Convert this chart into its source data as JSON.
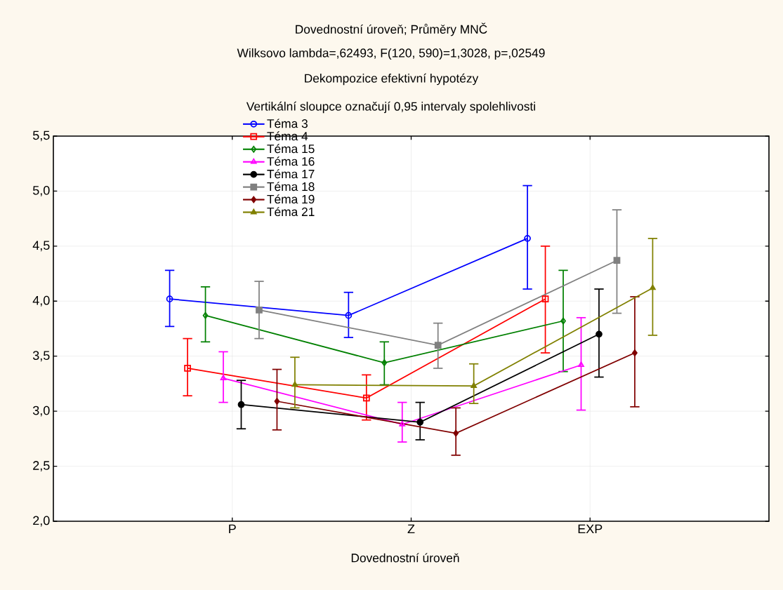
{
  "chart_data": {
    "type": "line",
    "title": "Dovednostní úroveň; Průměry MNČ",
    "subtitle": "Wilksovo lambda=,62493, F(120, 590)=1,3028, p=,02549",
    "annotations": [
      "Dekompozice efektivní hypotézy",
      "Vertikální sloupce označují 0,95 intervaly spolehlivosti"
    ],
    "xlabel": "Dovednostní úroveň",
    "categories": [
      "P",
      "Z",
      "EXP"
    ],
    "series": [
      {
        "name": "Téma 3",
        "color": "#0000ff",
        "marker": "circle",
        "values": [
          4.02,
          3.87,
          4.57
        ],
        "errors": [
          [
            3.77,
            4.28
          ],
          [
            3.67,
            4.08
          ],
          [
            4.11,
            5.05
          ]
        ]
      },
      {
        "name": "Téma 4",
        "color": "#ff0000",
        "marker": "square",
        "values": [
          3.39,
          3.12,
          4.02
        ],
        "errors": [
          [
            3.14,
            3.66
          ],
          [
            2.92,
            3.33
          ],
          [
            3.53,
            4.5
          ]
        ]
      },
      {
        "name": "Téma 15",
        "color": "#008000",
        "marker": "diamond",
        "values": [
          3.87,
          3.44,
          3.82
        ],
        "errors": [
          [
            3.63,
            4.13
          ],
          [
            3.24,
            3.63
          ],
          [
            3.36,
            4.28
          ]
        ]
      },
      {
        "name": "Téma 16",
        "color": "#ff00ff",
        "marker": "triangle",
        "values": [
          3.3,
          2.88,
          3.42
        ],
        "errors": [
          [
            3.08,
            3.54
          ],
          [
            2.72,
            3.08
          ],
          [
            3.01,
            3.85
          ]
        ]
      },
      {
        "name": "Téma 17",
        "color": "#000000",
        "marker": "circle",
        "values": [
          3.06,
          2.9,
          3.7
        ],
        "errors": [
          [
            2.84,
            3.28
          ],
          [
            2.74,
            3.08
          ],
          [
            3.31,
            4.11
          ]
        ]
      },
      {
        "name": "Téma 18",
        "color": "#808080",
        "marker": "square",
        "values": [
          3.92,
          3.6,
          4.37
        ],
        "errors": [
          [
            3.66,
            4.18
          ],
          [
            3.39,
            3.8
          ],
          [
            3.89,
            4.83
          ]
        ]
      },
      {
        "name": "Téma 19",
        "color": "#800000",
        "marker": "diamond",
        "values": [
          3.09,
          2.8,
          3.53
        ],
        "errors": [
          [
            2.83,
            3.38
          ],
          [
            2.6,
            3.03
          ],
          [
            3.04,
            4.04
          ]
        ]
      },
      {
        "name": "Téma 21",
        "color": "#808000",
        "marker": "triangle",
        "values": [
          3.24,
          3.23,
          4.12
        ],
        "errors": [
          [
            3.03,
            3.49
          ],
          [
            3.07,
            3.43
          ],
          [
            3.69,
            4.57
          ]
        ]
      }
    ],
    "ylim": [
      2,
      5.5
    ],
    "yticks": [
      {
        "value": 2,
        "label": "2,0"
      },
      {
        "value": 2.5,
        "label": "2,5"
      },
      {
        "value": 3,
        "label": "3,0"
      },
      {
        "value": 3.5,
        "label": "3,5"
      },
      {
        "value": 4,
        "label": "4,0"
      },
      {
        "value": 4.5,
        "label": "4,5"
      },
      {
        "value": 5,
        "label": "5,0"
      },
      {
        "value": 5.5,
        "label": "5,5"
      }
    ],
    "grid": true,
    "legend": "top",
    "line_style": "solid"
  }
}
